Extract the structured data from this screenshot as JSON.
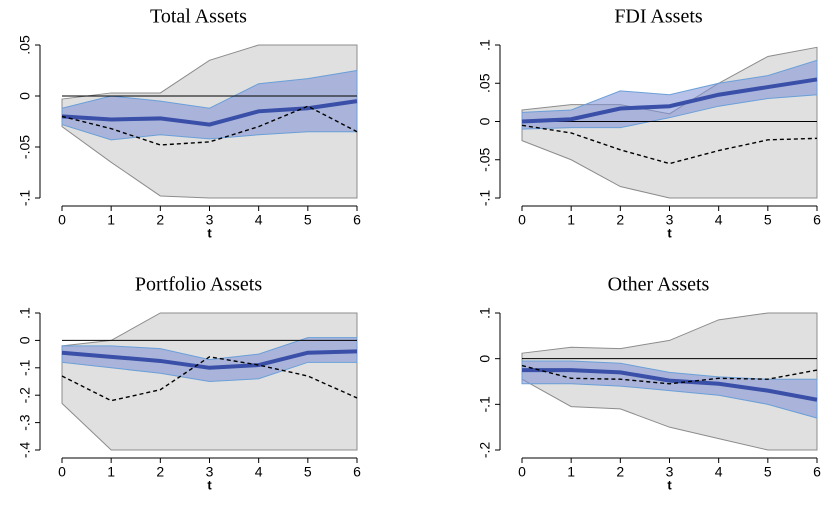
{
  "chart_data": [
    {
      "type": "line",
      "title": "Total Assets",
      "xlabel": "t",
      "x": [
        0,
        1,
        2,
        3,
        4,
        5,
        6
      ],
      "xlim": [
        0,
        6
      ],
      "xticks": [
        0,
        1,
        2,
        3,
        4,
        5,
        6
      ],
      "ylim": [
        -0.1,
        0.05
      ],
      "yticks": [
        {
          "value": 0.05,
          "label": ".05"
        },
        0,
        {
          "value": -0.05,
          "label": "-.05"
        },
        {
          "value": -0.1,
          "label": "-.1"
        }
      ],
      "reference_line": 0,
      "bands": [
        {
          "color": "#e0e0e0",
          "edge": "#8c8c8c",
          "upper": [
            -0.003,
            0.003,
            0.003,
            0.035,
            0.05,
            0.05,
            0.05
          ],
          "lower": [
            -0.03,
            -0.065,
            -0.098,
            -0.1,
            -0.1,
            -0.1,
            -0.1
          ]
        },
        {
          "color": "#7d8fd6",
          "edge": "#6a9fd8",
          "upper": [
            -0.012,
            0.0,
            -0.005,
            -0.012,
            0.012,
            0.017,
            0.025
          ],
          "lower": [
            -0.028,
            -0.043,
            -0.038,
            -0.042,
            -0.038,
            -0.035,
            -0.035
          ]
        }
      ],
      "series": [
        {
          "color": "#3a4fa8",
          "style": "solid",
          "values": [
            -0.02,
            -0.023,
            -0.022,
            -0.028,
            -0.015,
            -0.012,
            -0.005
          ]
        },
        {
          "color": "#000000",
          "style": "dashed",
          "values": [
            -0.02,
            -0.032,
            -0.048,
            -0.045,
            -0.03,
            -0.01,
            -0.035
          ]
        }
      ]
    },
    {
      "type": "line",
      "title": "FDI Assets",
      "xlabel": "t",
      "x": [
        0,
        1,
        2,
        3,
        4,
        5,
        6
      ],
      "xlim": [
        0,
        6
      ],
      "xticks": [
        0,
        1,
        2,
        3,
        4,
        5,
        6
      ],
      "ylim": [
        -0.1,
        0.1
      ],
      "yticks": [
        {
          "value": 0.1,
          "label": ".1"
        },
        {
          "value": 0.05,
          "label": ".05"
        },
        0,
        {
          "value": -0.05,
          "label": "-.05"
        },
        {
          "value": -0.1,
          "label": "-.1"
        }
      ],
      "reference_line": 0,
      "bands": [
        {
          "color": "#e0e0e0",
          "edge": "#8c8c8c",
          "upper": [
            0.015,
            0.022,
            0.022,
            0.01,
            0.05,
            0.085,
            0.097
          ],
          "lower": [
            -0.025,
            -0.05,
            -0.085,
            -0.1,
            -0.1,
            -0.1,
            -0.1
          ]
        },
        {
          "color": "#7d8fd6",
          "edge": "#6a9fd8",
          "upper": [
            0.012,
            0.015,
            0.04,
            0.035,
            0.05,
            0.06,
            0.08
          ],
          "lower": [
            -0.01,
            -0.008,
            -0.008,
            0.005,
            0.02,
            0.03,
            0.035
          ]
        }
      ],
      "series": [
        {
          "color": "#3a4fa8",
          "style": "solid",
          "values": [
            0,
            0.003,
            0.017,
            0.02,
            0.035,
            0.045,
            0.055
          ]
        },
        {
          "color": "#000000",
          "style": "dashed",
          "values": [
            -0.005,
            -0.015,
            -0.037,
            -0.055,
            -0.038,
            -0.024,
            -0.022
          ]
        }
      ]
    },
    {
      "type": "line",
      "title": "Portfolio Assets",
      "xlabel": "t",
      "x": [
        0,
        1,
        2,
        3,
        4,
        5,
        6
      ],
      "xlim": [
        0,
        6
      ],
      "xticks": [
        0,
        1,
        2,
        3,
        4,
        5,
        6
      ],
      "ylim": [
        -0.4,
        0.1
      ],
      "yticks": [
        {
          "value": 0.1,
          "label": ".1"
        },
        0,
        {
          "value": -0.1,
          "label": "-.1"
        },
        {
          "value": -0.2,
          "label": "-.2"
        },
        {
          "value": -0.3,
          "label": "-.3"
        },
        {
          "value": -0.4,
          "label": "-.4"
        }
      ],
      "reference_line": 0,
      "bands": [
        {
          "color": "#e0e0e0",
          "edge": "#8c8c8c",
          "upper": [
            -0.02,
            0.0,
            0.1,
            0.1,
            0.1,
            0.1,
            0.1
          ],
          "lower": [
            -0.23,
            -0.4,
            -0.4,
            -0.4,
            -0.4,
            -0.4,
            -0.4
          ]
        },
        {
          "color": "#7d8fd6",
          "edge": "#6a9fd8",
          "upper": [
            -0.02,
            -0.02,
            -0.03,
            -0.07,
            -0.05,
            0.01,
            0.01
          ],
          "lower": [
            -0.08,
            -0.1,
            -0.12,
            -0.15,
            -0.14,
            -0.08,
            -0.08
          ]
        }
      ],
      "series": [
        {
          "color": "#3a4fa8",
          "style": "solid",
          "values": [
            -0.045,
            -0.06,
            -0.075,
            -0.1,
            -0.09,
            -0.045,
            -0.04
          ]
        },
        {
          "color": "#000000",
          "style": "dashed",
          "values": [
            -0.13,
            -0.22,
            -0.18,
            -0.06,
            -0.09,
            -0.13,
            -0.21
          ]
        }
      ]
    },
    {
      "type": "line",
      "title": "Other Assets",
      "xlabel": "t",
      "x": [
        0,
        1,
        2,
        3,
        4,
        5,
        6
      ],
      "xlim": [
        0,
        6
      ],
      "xticks": [
        0,
        1,
        2,
        3,
        4,
        5,
        6
      ],
      "ylim": [
        -0.2,
        0.1
      ],
      "yticks": [
        {
          "value": 0.1,
          "label": ".1"
        },
        0,
        {
          "value": -0.1,
          "label": "-.1"
        },
        {
          "value": -0.2,
          "label": "-.2"
        }
      ],
      "reference_line": 0,
      "bands": [
        {
          "color": "#e0e0e0",
          "edge": "#8c8c8c",
          "upper": [
            0.012,
            0.025,
            0.022,
            0.04,
            0.085,
            0.1,
            0.1
          ],
          "lower": [
            -0.045,
            -0.105,
            -0.11,
            -0.15,
            -0.175,
            -0.2,
            -0.2
          ]
        },
        {
          "color": "#7d8fd6",
          "edge": "#6a9fd8",
          "upper": [
            -0.005,
            -0.005,
            -0.01,
            -0.03,
            -0.04,
            -0.045,
            -0.045
          ],
          "lower": [
            -0.055,
            -0.055,
            -0.06,
            -0.07,
            -0.08,
            -0.1,
            -0.13
          ]
        }
      ],
      "series": [
        {
          "color": "#3a4fa8",
          "style": "solid",
          "values": [
            -0.025,
            -0.025,
            -0.03,
            -0.048,
            -0.055,
            -0.07,
            -0.09
          ]
        },
        {
          "color": "#000000",
          "style": "dashed",
          "values": [
            -0.015,
            -0.043,
            -0.045,
            -0.055,
            -0.043,
            -0.045,
            -0.025
          ]
        }
      ]
    }
  ]
}
